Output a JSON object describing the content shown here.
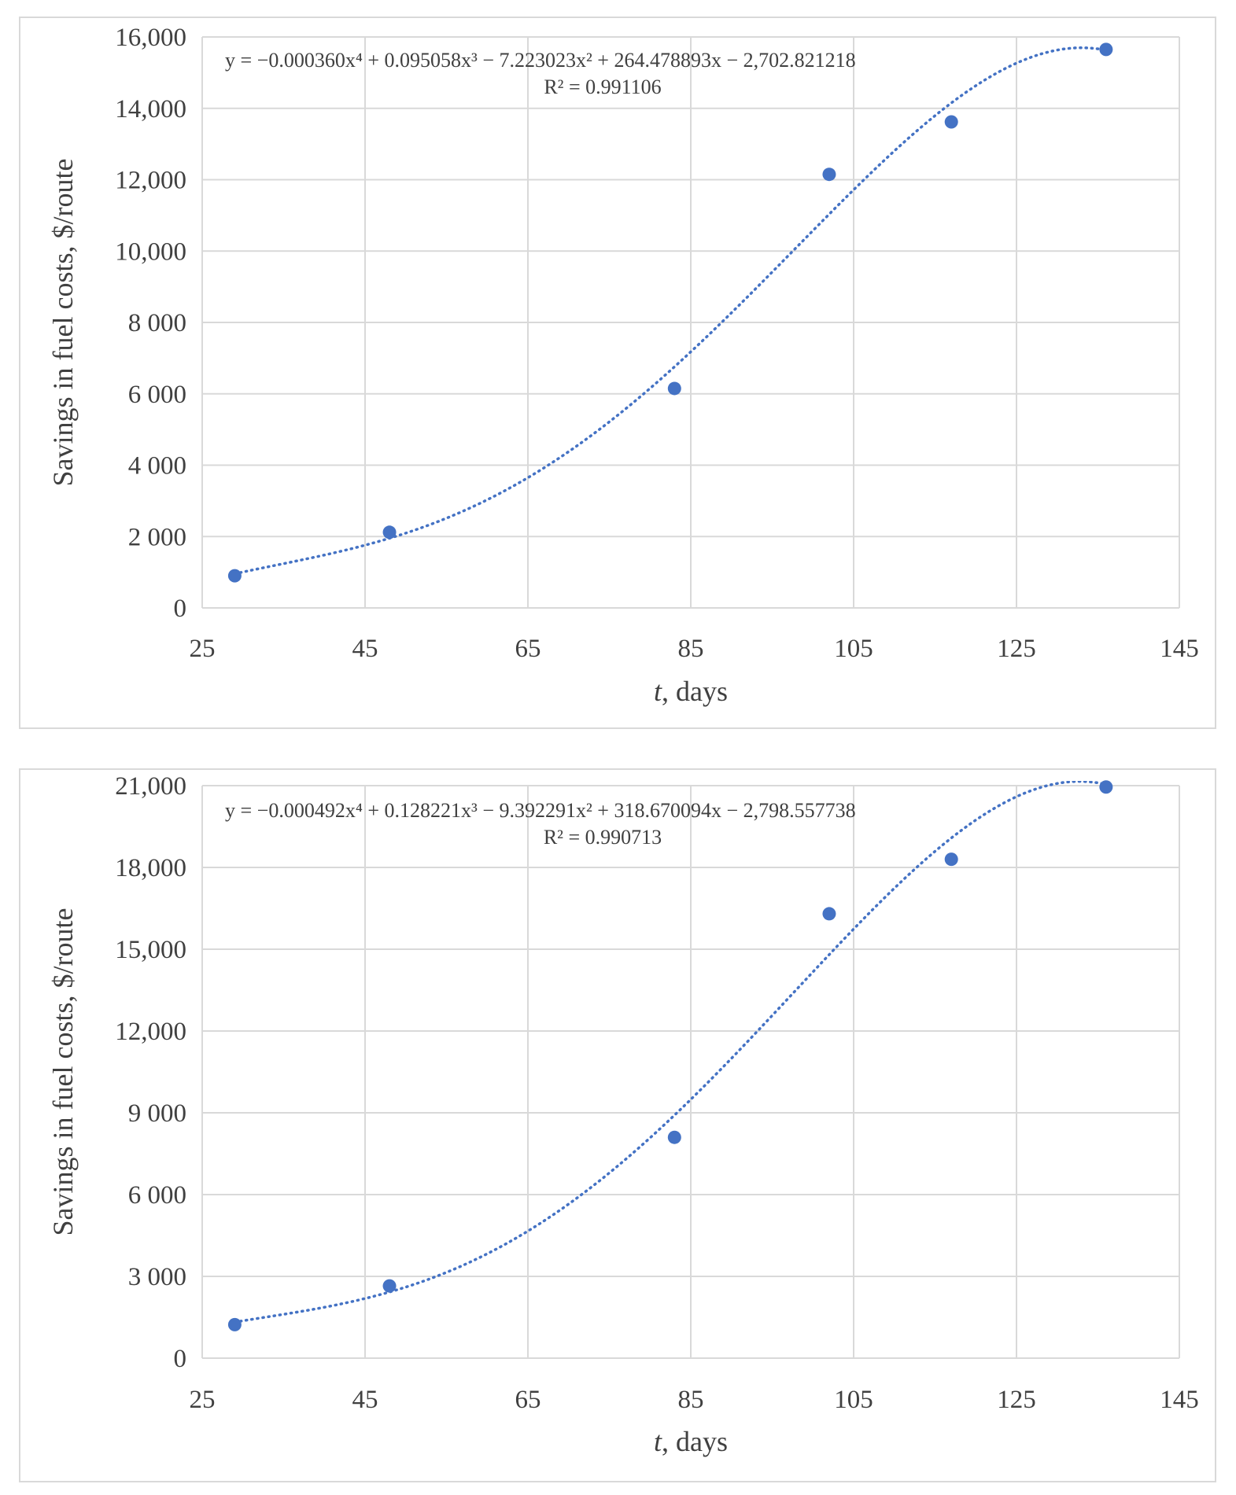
{
  "chart_data": [
    {
      "type": "scatter",
      "xlabel": {
        "italic": "t",
        "rest": ", days"
      },
      "ylabel": "Savings in fuel costs, $/route",
      "xlim": [
        25,
        145
      ],
      "ylim": [
        0,
        16000
      ],
      "x_ticks": [
        "25",
        "45",
        "65",
        "85",
        "105",
        "125",
        "145"
      ],
      "y_ticks": [
        "0",
        "2 000",
        "4 000",
        "6 000",
        "8 000",
        "10,000",
        "12,000",
        "14,000",
        "16,000"
      ],
      "grid": true,
      "series": [
        {
          "x": [
            29,
            48,
            83,
            102,
            117,
            136
          ],
          "y": [
            900,
            2120,
            6150,
            12150,
            13620,
            15650
          ]
        }
      ],
      "trendline": {
        "kind": "polynomial",
        "order": 4,
        "coefficients": [
          -0.00036,
          0.095058,
          -7.223023,
          264.478893,
          -2702.821218
        ],
        "equation": "y = −0.000360x⁴ + 0.095058x³ − 7.223023x² + 264.478893x − 2,702.821218",
        "r2": "R² = 0.991106"
      },
      "colors": {
        "points": "#4472c4",
        "trend": "#4472c4",
        "grid": "#d9d9d9"
      }
    },
    {
      "type": "scatter",
      "xlabel": {
        "italic": "t",
        "rest": ", days"
      },
      "ylabel": "Savings in fuel costs, $/route",
      "xlim": [
        25,
        145
      ],
      "ylim": [
        0,
        21000
      ],
      "x_ticks": [
        "25",
        "45",
        "65",
        "85",
        "105",
        "125",
        "145"
      ],
      "y_ticks": [
        "0",
        "3 000",
        "6 000",
        "9 000",
        "12,000",
        "15,000",
        "18,000",
        "21,000"
      ],
      "grid": true,
      "series": [
        {
          "x": [
            29,
            48,
            83,
            102,
            117,
            136
          ],
          "y": [
            1230,
            2650,
            8100,
            16300,
            18300,
            20950
          ]
        }
      ],
      "trendline": {
        "kind": "polynomial",
        "order": 4,
        "coefficients": [
          -0.000492,
          0.128221,
          -9.392291,
          318.670094,
          -2798.557738
        ],
        "equation": "y = −0.000492x⁴ + 0.128221x³ − 9.392291x² + 318.670094x − 2,798.557738",
        "r2": "R² = 0.990713"
      },
      "colors": {
        "points": "#4472c4",
        "trend": "#4472c4",
        "grid": "#d9d9d9"
      }
    }
  ]
}
